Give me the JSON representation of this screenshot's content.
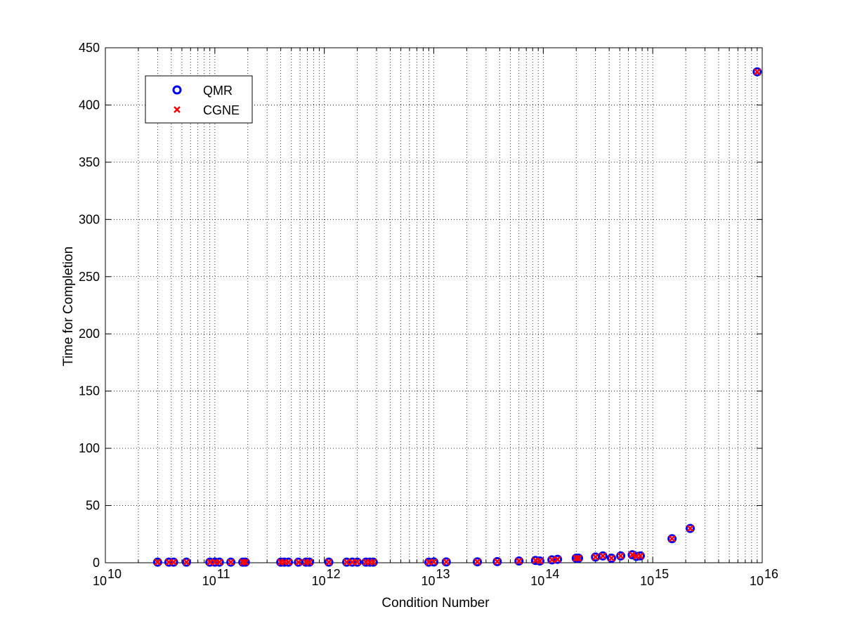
{
  "chart_data": {
    "type": "scatter",
    "title": "",
    "xlabel": "Condition Number",
    "ylabel": "Time for Completion",
    "xscale": "log",
    "xlim": [
      10000000000.0,
      1e+16
    ],
    "ylim": [
      0,
      450
    ],
    "grid": true,
    "legend_position": "top-left",
    "x_tick_labels": [
      {
        "base": "10",
        "exp": "10"
      },
      {
        "base": "10",
        "exp": "11"
      },
      {
        "base": "10",
        "exp": "12"
      },
      {
        "base": "10",
        "exp": "13"
      },
      {
        "base": "10",
        "exp": "14"
      },
      {
        "base": "10",
        "exp": "15"
      },
      {
        "base": "10",
        "exp": "16"
      }
    ],
    "y_ticks": [
      "0",
      "50",
      "100",
      "150",
      "200",
      "250",
      "300",
      "350",
      "400",
      "450"
    ],
    "series": [
      {
        "name": "QMR",
        "marker": "circle",
        "color": "#0000ff",
        "points": [
          [
            30000000000.0,
            0.5
          ],
          [
            38000000000.0,
            0.5
          ],
          [
            42000000000.0,
            0.5
          ],
          [
            55000000000.0,
            0.5
          ],
          [
            90000000000.0,
            0.5
          ],
          [
            100000000000.0,
            0.5
          ],
          [
            110000000000.0,
            0.5
          ],
          [
            140000000000.0,
            0.5
          ],
          [
            180000000000.0,
            0.5
          ],
          [
            190000000000.0,
            0.5
          ],
          [
            400000000000.0,
            0.5
          ],
          [
            430000000000.0,
            0.5
          ],
          [
            470000000000.0,
            0.5
          ],
          [
            580000000000.0,
            0.5
          ],
          [
            680000000000.0,
            0.5
          ],
          [
            730000000000.0,
            0.5
          ],
          [
            1100000000000.0,
            0.5
          ],
          [
            1600000000000.0,
            0.5
          ],
          [
            1800000000000.0,
            0.5
          ],
          [
            2000000000000.0,
            0.5
          ],
          [
            2400000000000.0,
            0.5
          ],
          [
            2600000000000.0,
            0.5
          ],
          [
            2800000000000.0,
            0.5
          ],
          [
            9000000000000.0,
            0.5
          ],
          [
            10000000000000.0,
            0.7
          ],
          [
            13000000000000.0,
            0.7
          ],
          [
            25000000000000.0,
            0.8
          ],
          [
            38000000000000.0,
            1
          ],
          [
            60000000000000.0,
            1.5
          ],
          [
            85000000000000.0,
            2
          ],
          [
            93000000000000.0,
            1.5
          ],
          [
            120000000000000.0,
            2.5
          ],
          [
            135000000000000.0,
            3
          ],
          [
            200000000000000.0,
            4
          ],
          [
            210000000000000.0,
            4
          ],
          [
            300000000000000.0,
            5
          ],
          [
            350000000000000.0,
            6
          ],
          [
            420000000000000.0,
            4
          ],
          [
            510000000000000.0,
            6
          ],
          [
            650000000000000.0,
            7
          ],
          [
            710000000000000.0,
            5.5
          ],
          [
            770000000000000.0,
            6
          ],
          [
            1500000000000000.0,
            21
          ],
          [
            2200000000000000.0,
            30
          ],
          [
            9000000000000000.0,
            429
          ]
        ]
      },
      {
        "name": "CGNE",
        "marker": "x",
        "color": "#ff0000",
        "points": [
          [
            30000000000.0,
            0.5
          ],
          [
            38000000000.0,
            0.5
          ],
          [
            42000000000.0,
            0.5
          ],
          [
            55000000000.0,
            0.5
          ],
          [
            90000000000.0,
            0.5
          ],
          [
            100000000000.0,
            0.5
          ],
          [
            110000000000.0,
            0.5
          ],
          [
            140000000000.0,
            0.5
          ],
          [
            180000000000.0,
            0.5
          ],
          [
            190000000000.0,
            0.5
          ],
          [
            400000000000.0,
            0.5
          ],
          [
            430000000000.0,
            0.5
          ],
          [
            470000000000.0,
            0.5
          ],
          [
            580000000000.0,
            0.5
          ],
          [
            680000000000.0,
            0.5
          ],
          [
            730000000000.0,
            0.5
          ],
          [
            1100000000000.0,
            0.5
          ],
          [
            1600000000000.0,
            0.5
          ],
          [
            1800000000000.0,
            0.5
          ],
          [
            2000000000000.0,
            0.5
          ],
          [
            2400000000000.0,
            0.5
          ],
          [
            2600000000000.0,
            0.5
          ],
          [
            2800000000000.0,
            0.5
          ],
          [
            9000000000000.0,
            0.5
          ],
          [
            10000000000000.0,
            0.7
          ],
          [
            13000000000000.0,
            0.7
          ],
          [
            25000000000000.0,
            0.8
          ],
          [
            38000000000000.0,
            1
          ],
          [
            60000000000000.0,
            1.5
          ],
          [
            85000000000000.0,
            2
          ],
          [
            93000000000000.0,
            1.5
          ],
          [
            120000000000000.0,
            2.5
          ],
          [
            135000000000000.0,
            3
          ],
          [
            200000000000000.0,
            4
          ],
          [
            210000000000000.0,
            4
          ],
          [
            300000000000000.0,
            5
          ],
          [
            350000000000000.0,
            6
          ],
          [
            420000000000000.0,
            4
          ],
          [
            510000000000000.0,
            6
          ],
          [
            650000000000000.0,
            7
          ],
          [
            710000000000000.0,
            5.5
          ],
          [
            770000000000000.0,
            6
          ],
          [
            1500000000000000.0,
            21
          ],
          [
            2200000000000000.0,
            30
          ],
          [
            9000000000000000.0,
            429
          ]
        ]
      }
    ]
  }
}
